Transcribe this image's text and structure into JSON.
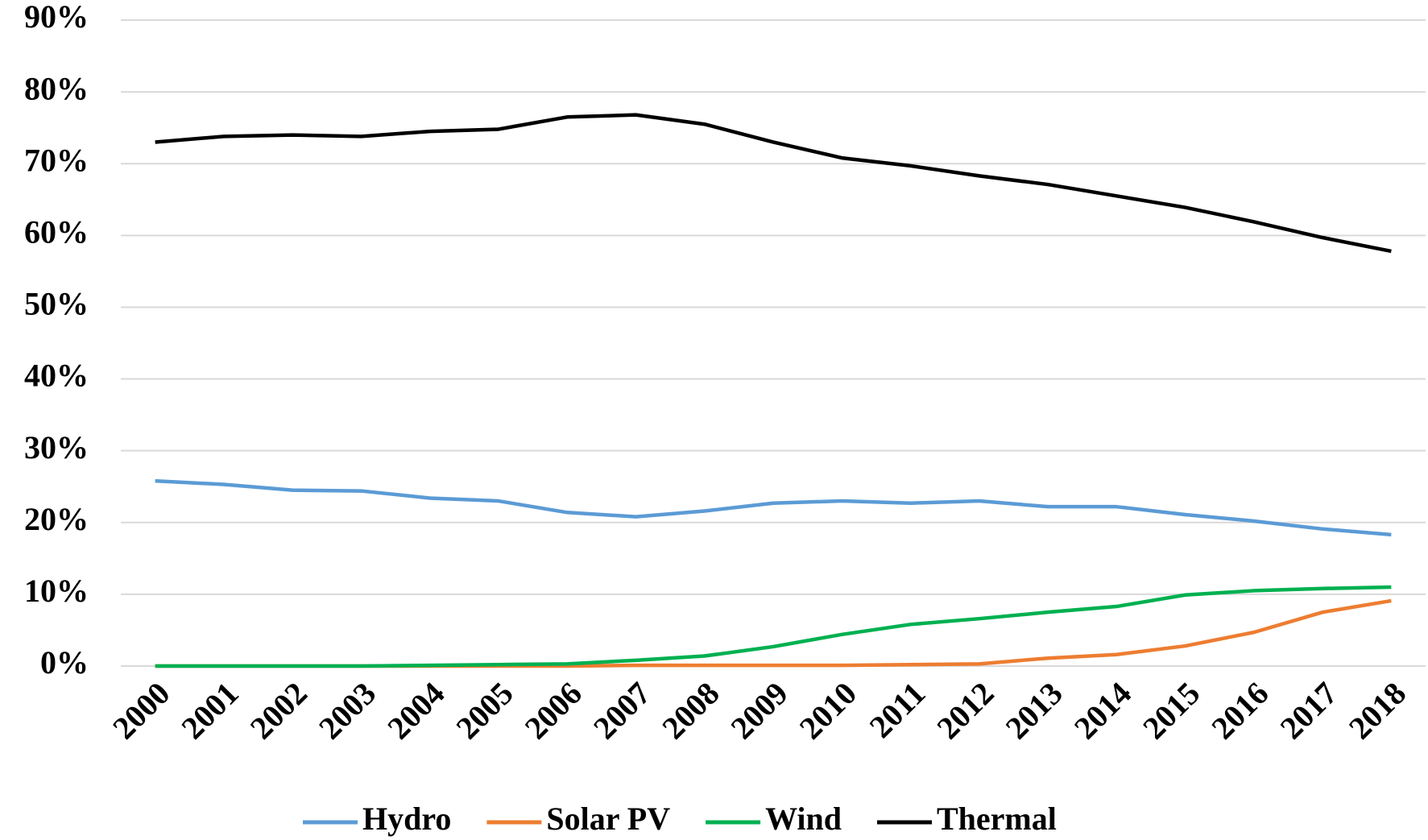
{
  "chart_data": {
    "type": "line",
    "categories": [
      "2000",
      "2001",
      "2002",
      "2003",
      "2004",
      "2005",
      "2006",
      "2007",
      "2008",
      "2009",
      "2010",
      "2011",
      "2012",
      "2013",
      "2014",
      "2015",
      "2016",
      "2017",
      "2018"
    ],
    "series": [
      {
        "name": "Hydro",
        "color": "#5b9bd5",
        "values": [
          25.8,
          25.3,
          24.5,
          24.4,
          23.4,
          23.0,
          21.4,
          20.8,
          21.6,
          22.7,
          23.0,
          22.7,
          23.0,
          22.2,
          22.2,
          21.1,
          20.2,
          19.1,
          18.3
        ]
      },
      {
        "name": "Solar PV",
        "color": "#ed7d31",
        "values": [
          0,
          0,
          0,
          0,
          0,
          0,
          0,
          0.1,
          0.1,
          0.1,
          0.1,
          0.2,
          0.3,
          1.1,
          1.6,
          2.8,
          4.7,
          7.5,
          9.1
        ]
      },
      {
        "name": "Wind",
        "color": "#00b050",
        "values": [
          0,
          0,
          0,
          0,
          0.1,
          0.2,
          0.3,
          0.8,
          1.4,
          2.7,
          4.4,
          5.8,
          6.6,
          7.5,
          8.3,
          9.9,
          10.5,
          10.8,
          11.0
        ]
      },
      {
        "name": "Thermal",
        "color": "#000000",
        "values": [
          73.0,
          73.8,
          74.0,
          73.8,
          74.5,
          74.8,
          76.5,
          76.8,
          75.5,
          73.0,
          70.8,
          69.7,
          68.3,
          67.1,
          65.5,
          63.9,
          61.9,
          59.7,
          57.8
        ]
      }
    ],
    "ylim": [
      0,
      90
    ],
    "yticks": [
      {
        "value": 0,
        "label": "0%"
      },
      {
        "value": 10,
        "label": "10%"
      },
      {
        "value": 20,
        "label": "20%"
      },
      {
        "value": 30,
        "label": "30%"
      },
      {
        "value": 40,
        "label": "40%"
      },
      {
        "value": 50,
        "label": "50%"
      },
      {
        "value": 60,
        "label": "60%"
      },
      {
        "value": 70,
        "label": "70%"
      },
      {
        "value": 80,
        "label": "80%"
      },
      {
        "value": 90,
        "label": "90%"
      }
    ],
    "grid": true,
    "legend": "bottom"
  }
}
